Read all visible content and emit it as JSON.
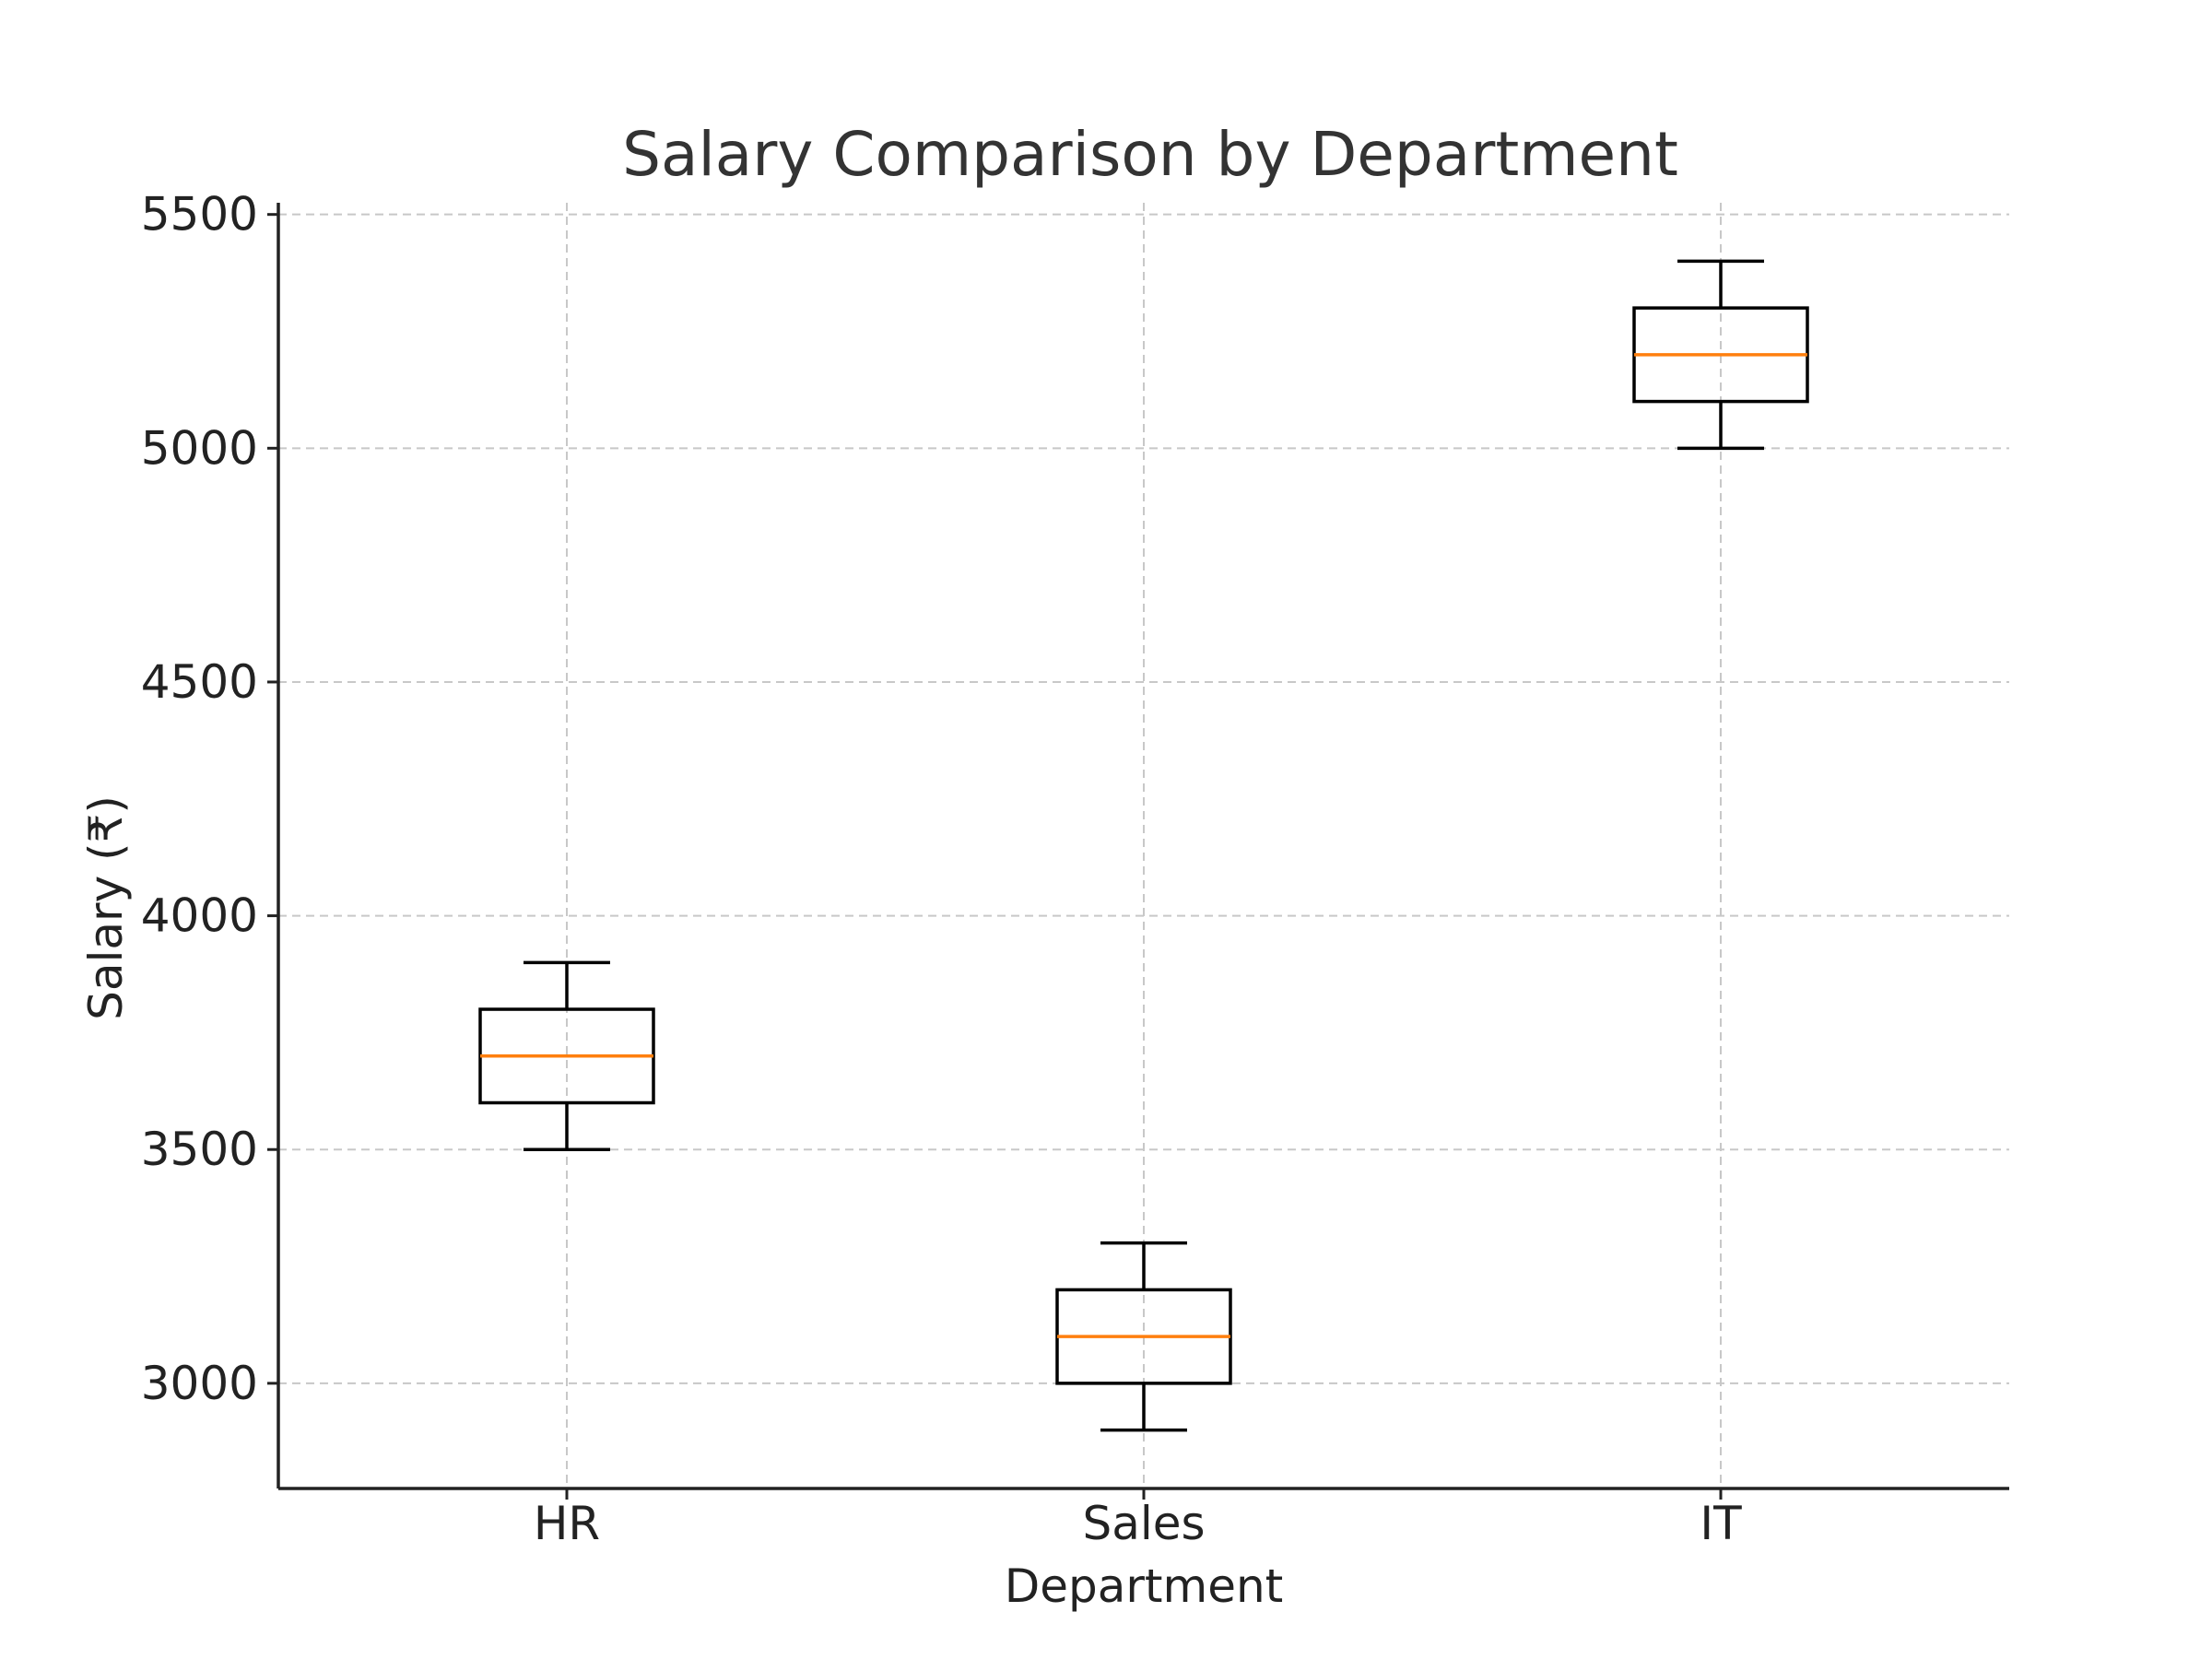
{
  "chart_data": {
    "type": "box",
    "title": "Salary Comparison by Department",
    "xlabel": "Department",
    "ylabel": "Salary (₹)",
    "categories": [
      "HR",
      "Sales",
      "IT"
    ],
    "boxes": [
      {
        "category": "HR",
        "min": 3500,
        "q1": 3600,
        "median": 3700,
        "q3": 3800,
        "max": 3900
      },
      {
        "category": "Sales",
        "min": 2900,
        "q1": 3000,
        "median": 3100,
        "q3": 3200,
        "max": 3300
      },
      {
        "category": "IT",
        "min": 5000,
        "q1": 5100,
        "median": 5200,
        "q3": 5300,
        "max": 5400
      }
    ],
    "yticks": [
      3000,
      3500,
      4000,
      4500,
      5000,
      5500
    ],
    "ylim": [
      2775,
      5525
    ],
    "grid": true,
    "colors": {
      "box": "#000000",
      "median": "#ff7f0e",
      "grid": "#c8c8c8"
    }
  }
}
